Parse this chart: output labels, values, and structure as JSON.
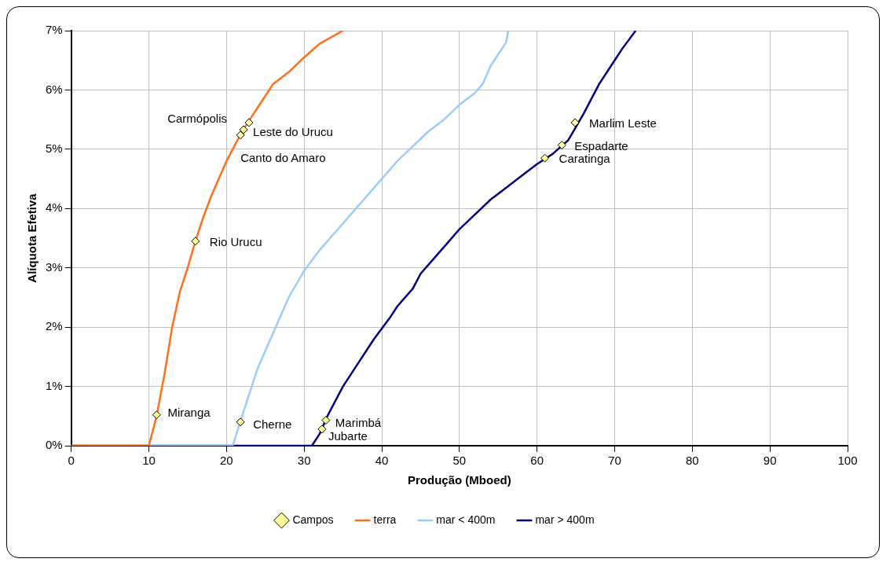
{
  "chart_data": {
    "type": "line",
    "xlabel": "Produção (Mboed)",
    "ylabel": "Alíquota Efetiva",
    "xlim": [
      0,
      100
    ],
    "xticks": [
      0,
      10,
      20,
      30,
      40,
      50,
      60,
      70,
      80,
      90,
      100
    ],
    "ylim": [
      0,
      7
    ],
    "yticks": [
      {
        "value": 0,
        "label": "0%"
      },
      {
        "value": 1,
        "label": "1%"
      },
      {
        "value": 2,
        "label": "2%"
      },
      {
        "value": 3,
        "label": "3%"
      },
      {
        "value": 4,
        "label": "4%"
      },
      {
        "value": 5,
        "label": "5%"
      },
      {
        "value": 6,
        "label": "6%"
      },
      {
        "value": 7,
        "label": "7%"
      }
    ],
    "grid": true,
    "legend": "bottom",
    "marker": "none",
    "line_style": "solid",
    "series": [
      {
        "name": "Campos",
        "type": "scatter",
        "marker": "diamond",
        "color": "#ffff99",
        "x": [
          22.9,
          22.2,
          21.8,
          16.0,
          11.0,
          21.8,
          32.8,
          32.3,
          64.9,
          63.2,
          61.0
        ],
        "values": [
          5.45,
          5.33,
          5.24,
          3.45,
          0.52,
          0.4,
          0.43,
          0.28,
          5.45,
          5.07,
          4.85
        ]
      },
      {
        "name": "terra",
        "color": "#ff6f1c",
        "x": [
          0,
          10,
          11,
          12,
          13,
          14,
          15,
          16,
          17,
          18,
          19,
          20,
          21,
          22,
          23,
          24,
          25,
          26,
          28,
          30,
          32,
          35
        ],
        "values": [
          0,
          0,
          0.5,
          1.2,
          2.0,
          2.6,
          3.0,
          3.45,
          3.85,
          4.2,
          4.5,
          4.8,
          5.05,
          5.3,
          5.5,
          5.7,
          5.9,
          6.1,
          6.3,
          6.55,
          6.78,
          7.0
        ]
      },
      {
        "name": "mar < 400m",
        "color": "#99ccff",
        "x": [
          0,
          20.8,
          22,
          23,
          24,
          25,
          26,
          28,
          30,
          32,
          34,
          36,
          38,
          40,
          42,
          44,
          46,
          48,
          50,
          52,
          53,
          54,
          56,
          56.3
        ],
        "values": [
          0,
          0,
          0.5,
          0.9,
          1.3,
          1.6,
          1.9,
          2.5,
          2.95,
          3.3,
          3.6,
          3.9,
          4.2,
          4.5,
          4.8,
          5.05,
          5.3,
          5.5,
          5.75,
          5.95,
          6.1,
          6.4,
          6.8,
          7.0
        ]
      },
      {
        "name": "mar > 400m",
        "color": "#000080",
        "x": [
          0,
          31,
          32,
          33,
          34,
          35,
          37,
          39,
          41,
          42,
          44,
          45,
          46,
          48,
          50,
          52,
          54,
          56,
          58,
          60,
          62,
          64,
          66,
          68,
          70,
          71,
          72.7
        ],
        "values": [
          0,
          0,
          0.2,
          0.5,
          0.75,
          1.0,
          1.4,
          1.8,
          2.15,
          2.35,
          2.65,
          2.9,
          3.05,
          3.35,
          3.65,
          3.9,
          4.15,
          4.35,
          4.55,
          4.75,
          4.92,
          5.15,
          5.6,
          6.1,
          6.5,
          6.7,
          7.0
        ]
      }
    ],
    "annotations": [
      {
        "text": "Carmópolis",
        "x": 22.9,
        "y": 5.45
      },
      {
        "text": "Leste do Urucu",
        "x": 22.2,
        "y": 5.33
      },
      {
        "text": "Canto do Amaro",
        "x": 21.8,
        "y": 5.24
      },
      {
        "text": "Rio Urucu",
        "x": 16.0,
        "y": 3.45
      },
      {
        "text": "Miranga",
        "x": 11.0,
        "y": 0.52
      },
      {
        "text": "Cherne",
        "x": 21.8,
        "y": 0.4
      },
      {
        "text": "Marimbá",
        "x": 32.8,
        "y": 0.43
      },
      {
        "text": "Jubarte",
        "x": 32.3,
        "y": 0.28
      },
      {
        "text": "Marlim Leste",
        "x": 64.9,
        "y": 5.45
      },
      {
        "text": "Espadarte",
        "x": 63.2,
        "y": 5.07
      },
      {
        "text": "Caratinga",
        "x": 61.0,
        "y": 4.85
      }
    ]
  }
}
